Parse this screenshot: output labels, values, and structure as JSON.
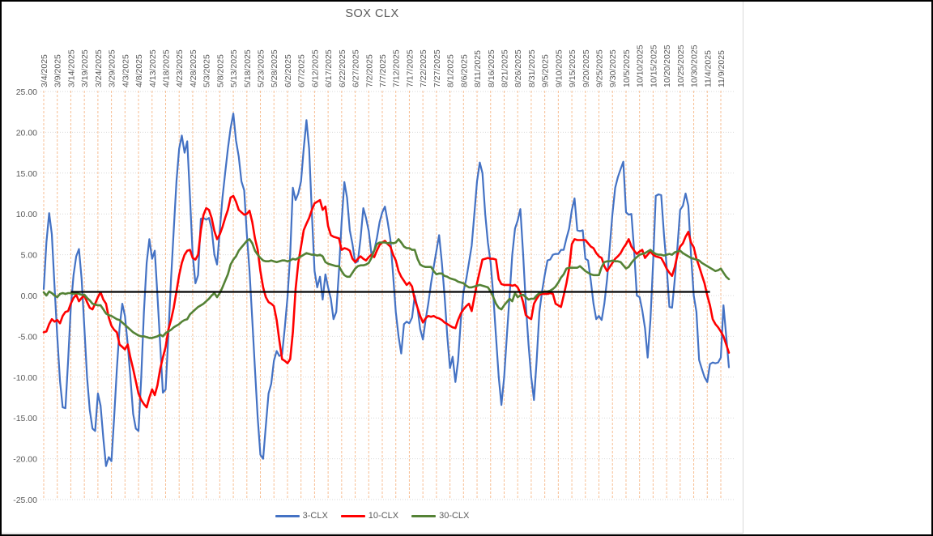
{
  "chart_data": {
    "type": "line",
    "title": "SOX CLX",
    "ylim": [
      -25,
      25
    ],
    "y_tick_step": 5,
    "y_tick_labels": [
      "25.00",
      "20.00",
      "15.00",
      "10.00",
      "5.00",
      "0.00",
      "-5.00",
      "-10.00",
      "-15.00",
      "-20.00",
      "-25.00"
    ],
    "grid": {
      "vertical_color": "#f7be93",
      "horizontal_color": "#d9d9d9",
      "vertical_on": true,
      "horizontal_on": true
    },
    "x_axis": {
      "unit": "date",
      "start_date": "3/4/2025",
      "days_between_points": 1,
      "days_between_ticks": 5,
      "tick_labels": [
        "3/4/2025",
        "3/9/2025",
        "3/14/2025",
        "3/19/2025",
        "3/24/2025",
        "3/29/2025",
        "4/3/2025",
        "4/8/2025",
        "4/13/2025",
        "4/18/2025",
        "4/23/2025",
        "4/28/2025",
        "5/3/2025",
        "5/8/2025",
        "5/13/2025",
        "5/18/2025",
        "5/23/2025",
        "5/28/2025",
        "6/2/2025",
        "6/7/2025",
        "6/12/2025",
        "6/17/2025",
        "6/22/2025",
        "6/27/2025",
        "7/2/2025",
        "7/7/2025",
        "7/12/2025",
        "7/17/2025",
        "7/22/2025",
        "7/27/2025",
        "8/1/2025",
        "8/6/2025",
        "8/11/2025",
        "8/16/2025",
        "8/21/2025",
        "8/26/2025",
        "8/31/2025",
        "9/5/2025",
        "9/10/2025",
        "9/15/2025",
        "9/20/2025",
        "9/25/2025",
        "9/30/2025",
        "10/5/2025",
        "10/10/2025",
        "10/15/2025",
        "10/20/2025",
        "10/25/2025",
        "10/30/2025",
        "11/4/2025",
        "11/9/2025"
      ]
    },
    "legend": {
      "position": "bottom",
      "entries": [
        "3-CLX",
        "10-CLX",
        "30-CLX"
      ]
    },
    "baseline": {
      "color": "#000000",
      "value": 0.45,
      "start_day_index": 10,
      "end_day_index": 246
    },
    "series": [
      {
        "name": "3-CLX",
        "color": "#4472C4",
        "width": 2.2,
        "values": [
          0.8,
          6.5,
          10.1,
          7.5,
          1.0,
          -5.0,
          -10.5,
          -13.7,
          -13.8,
          -8.0,
          -1.5,
          2.5,
          4.8,
          5.7,
          2.0,
          -4.0,
          -10.0,
          -14.0,
          -16.3,
          -16.6,
          -12.0,
          -13.5,
          -17.5,
          -20.9,
          -19.8,
          -20.3,
          -15.0,
          -9.0,
          -4.0,
          -1.0,
          -2.5,
          -6.0,
          -10.0,
          -14.5,
          -16.3,
          -16.6,
          -10.0,
          -2.0,
          4.0,
          6.9,
          4.5,
          5.5,
          0.0,
          -6.0,
          -11.9,
          -11.5,
          -5.0,
          2.0,
          8.0,
          14.0,
          18.0,
          19.6,
          17.5,
          18.9,
          12.0,
          5.0,
          1.5,
          2.5,
          9.4,
          9.5,
          9.3,
          9.5,
          8.2,
          5.0,
          3.8,
          8.0,
          12.0,
          15.0,
          18.0,
          20.5,
          22.3,
          19.0,
          17.0,
          14.0,
          12.9,
          7.5,
          3.0,
          -3.0,
          -9.0,
          -15.0,
          -19.5,
          -20.0,
          -16.0,
          -12.0,
          -10.8,
          -8.0,
          -6.8,
          -7.4,
          -7.2,
          -4.0,
          -0.2,
          5.0,
          13.2,
          11.7,
          12.5,
          14.0,
          18.0,
          21.5,
          18.0,
          10.0,
          3.0,
          1.0,
          2.3,
          -0.5,
          2.6,
          1.0,
          -0.4,
          -2.9,
          -2.0,
          3.0,
          9.0,
          13.9,
          12.0,
          8.0,
          6.3,
          4.0,
          4.2,
          7.0,
          10.7,
          9.5,
          7.9,
          5.1,
          5.5,
          7.0,
          9.0,
          10.2,
          10.9,
          9.0,
          6.9,
          2.5,
          -2.0,
          -5.0,
          -7.1,
          -3.5,
          -3.2,
          -3.4,
          -2.7,
          0.0,
          -1.5,
          -4.1,
          -5.4,
          -3.0,
          -1.0,
          1.5,
          3.5,
          5.5,
          7.4,
          4.0,
          0.0,
          -5.0,
          -8.9,
          -7.5,
          -10.6,
          -8.0,
          -3.0,
          0.5,
          2.0,
          4.0,
          6.1,
          10.0,
          14.0,
          16.3,
          15.0,
          10.0,
          6.5,
          4.0,
          0.0,
          -5.0,
          -10.0,
          -13.4,
          -10.0,
          -5.0,
          0.0,
          5.0,
          8.2,
          9.2,
          10.6,
          5.1,
          -1.0,
          -6.0,
          -10.0,
          -12.8,
          -8.0,
          -2.0,
          0.5,
          2.5,
          4.3,
          4.4,
          5.0,
          5.1,
          5.1,
          5.6,
          5.6,
          7.0,
          8.2,
          10.5,
          11.9,
          8.0,
          7.9,
          8.0,
          4.5,
          4.3,
          1.8,
          -1.0,
          -2.9,
          -2.5,
          -3.0,
          -1.0,
          2.0,
          6.0,
          10.0,
          13.2,
          14.5,
          15.5,
          16.4,
          10.2,
          9.9,
          10.0,
          5.5,
          0.0,
          -0.2,
          -1.8,
          -4.0,
          -7.6,
          -3.0,
          4.0,
          12.2,
          12.4,
          12.3,
          7.5,
          3.6,
          -1.4,
          -1.5,
          2.0,
          6.0,
          10.5,
          11.0,
          12.5,
          11.0,
          5.0,
          0.0,
          -2.0,
          -7.9,
          -9.0,
          -10.0,
          -10.6,
          -8.4,
          -8.2,
          -8.3,
          -8.2,
          -7.6,
          -1.2,
          -5.0,
          -8.8
        ]
      },
      {
        "name": "10-CLX",
        "color": "#FF0000",
        "width": 2.6,
        "values": [
          -4.5,
          -4.4,
          -3.5,
          -2.9,
          -3.2,
          -3.0,
          -3.4,
          -2.5,
          -2.0,
          -1.9,
          -1.0,
          -0.3,
          0.1,
          -0.7,
          -0.3,
          0.0,
          -0.8,
          -1.5,
          -1.7,
          -1.0,
          -0.2,
          0.4,
          -0.5,
          -1.0,
          -2.7,
          -3.7,
          -4.2,
          -4.5,
          -6.0,
          -6.3,
          -6.6,
          -6.0,
          -7.6,
          -9.0,
          -10.5,
          -12.0,
          -12.8,
          -13.3,
          -13.7,
          -12.5,
          -11.5,
          -12.2,
          -11.0,
          -9.0,
          -7.6,
          -6.3,
          -4.2,
          -3.0,
          -1.5,
          0.5,
          2.5,
          4.0,
          5.0,
          5.5,
          5.6,
          4.6,
          4.4,
          5.0,
          8.0,
          9.9,
          10.7,
          10.5,
          9.5,
          7.9,
          6.9,
          7.5,
          8.4,
          9.5,
          10.5,
          12.0,
          12.2,
          11.5,
          10.5,
          10.2,
          9.9,
          10.0,
          10.4,
          9.0,
          7.0,
          5.6,
          3.0,
          1.0,
          -0.2,
          -0.8,
          -1.0,
          -1.3,
          -3.0,
          -5.5,
          -7.8,
          -8.0,
          -8.3,
          -7.8,
          -4.5,
          0.8,
          4.0,
          6.0,
          8.0,
          8.8,
          9.5,
          10.5,
          11.3,
          11.5,
          11.7,
          10.5,
          10.9,
          8.5,
          7.4,
          7.2,
          7.1,
          7.0,
          5.6,
          5.8,
          5.7,
          5.5,
          4.5,
          4.1,
          4.5,
          4.8,
          4.5,
          4.3,
          4.7,
          5.0,
          4.7,
          5.5,
          6.2,
          6.5,
          6.7,
          6.3,
          6.0,
          5.0,
          4.3,
          3.0,
          2.3,
          1.8,
          1.3,
          1.6,
          1.1,
          -0.5,
          -1.5,
          -2.5,
          -3.3,
          -2.8,
          -2.5,
          -2.6,
          -2.5,
          -2.7,
          -2.8,
          -3.0,
          -3.3,
          -3.5,
          -3.7,
          -3.9,
          -4.0,
          -3.0,
          -2.2,
          -1.7,
          -1.3,
          -1.0,
          -1.9,
          -0.2,
          1.5,
          3.0,
          4.4,
          4.5,
          4.6,
          4.5,
          4.5,
          4.4,
          2.0,
          1.4,
          1.3,
          1.3,
          1.3,
          1.2,
          1.3,
          1.0,
          0.3,
          -0.8,
          -2.4,
          -2.7,
          -2.9,
          -1.0,
          -0.4,
          0.1,
          0.2,
          0.2,
          0.2,
          0.3,
          0.2,
          -1.0,
          -1.2,
          -1.4,
          0.0,
          1.5,
          3.3,
          6.3,
          6.9,
          6.8,
          6.8,
          6.8,
          6.8,
          6.4,
          6.0,
          5.8,
          5.2,
          4.8,
          4.6,
          3.6,
          3.0,
          3.5,
          4.0,
          4.5,
          4.8,
          5.2,
          5.8,
          6.3,
          6.9,
          6.0,
          5.5,
          5.1,
          5.4,
          5.6,
          4.6,
          5.0,
          5.4,
          5.0,
          4.8,
          4.7,
          4.6,
          4.0,
          3.3,
          2.8,
          2.4,
          3.5,
          5.0,
          6.0,
          6.4,
          7.2,
          7.8,
          6.5,
          5.9,
          4.5,
          3.6,
          2.5,
          1.5,
          0.0,
          -1.2,
          -2.9,
          -3.5,
          -3.9,
          -4.4,
          -5.0,
          -6.0,
          -7.0
        ]
      },
      {
        "name": "30-CLX",
        "color": "#548235",
        "width": 2.6,
        "values": [
          0.4,
          0.0,
          0.5,
          0.3,
          0.0,
          -0.2,
          0.2,
          0.3,
          0.2,
          0.3,
          0.3,
          0.2,
          0.3,
          0.2,
          0.1,
          0.1,
          -0.3,
          -0.6,
          -1.0,
          -1.1,
          -1.2,
          -1.2,
          -1.7,
          -2.2,
          -2.4,
          -2.5,
          -2.7,
          -2.9,
          -3.0,
          -3.3,
          -3.6,
          -3.9,
          -4.2,
          -4.5,
          -4.7,
          -4.9,
          -5.0,
          -5.0,
          -5.1,
          -5.2,
          -5.2,
          -5.1,
          -5.0,
          -4.8,
          -5.0,
          -4.6,
          -4.4,
          -4.2,
          -3.9,
          -3.7,
          -3.5,
          -3.2,
          -3.0,
          -2.9,
          -2.3,
          -2.0,
          -1.7,
          -1.4,
          -1.2,
          -1.0,
          -0.7,
          -0.4,
          0.0,
          0.3,
          -0.2,
          0.3,
          1.0,
          1.8,
          2.6,
          3.8,
          4.4,
          4.8,
          5.5,
          5.9,
          6.3,
          6.7,
          6.9,
          6.4,
          5.5,
          5.0,
          4.6,
          4.3,
          4.2,
          4.2,
          4.3,
          4.2,
          4.1,
          4.2,
          4.3,
          4.3,
          4.2,
          4.3,
          4.5,
          4.4,
          4.6,
          4.8,
          5.0,
          5.2,
          5.1,
          5.0,
          5.0,
          4.9,
          5.0,
          4.8,
          4.1,
          3.9,
          3.8,
          3.7,
          3.6,
          3.6,
          3.0,
          2.5,
          2.3,
          2.3,
          2.8,
          3.3,
          3.6,
          3.7,
          3.7,
          3.8,
          4.0,
          4.6,
          5.5,
          6.3,
          6.5,
          6.5,
          6.5,
          6.4,
          6.5,
          6.4,
          6.5,
          6.9,
          6.5,
          6.0,
          5.8,
          5.8,
          5.6,
          5.6,
          4.5,
          3.8,
          3.6,
          3.5,
          3.5,
          3.5,
          3.0,
          2.6,
          2.7,
          2.7,
          2.4,
          2.3,
          2.1,
          2.0,
          1.9,
          1.7,
          1.6,
          1.5,
          1.2,
          1.0,
          1.0,
          1.1,
          1.2,
          1.3,
          1.2,
          1.1,
          1.0,
          0.5,
          -0.2,
          -1.0,
          -1.5,
          -1.7,
          -1.2,
          -0.8,
          -0.4,
          -0.7,
          0.3,
          -0.2,
          0.0,
          0.1,
          -0.2,
          -0.5,
          -0.4,
          -0.4,
          0.0,
          0.3,
          0.4,
          0.5,
          0.5,
          0.6,
          0.8,
          1.1,
          1.6,
          2.2,
          2.6,
          3.3,
          3.4,
          3.4,
          3.4,
          3.4,
          3.6,
          3.3,
          3.0,
          2.8,
          2.6,
          2.5,
          2.5,
          2.5,
          3.5,
          4.1,
          4.2,
          4.2,
          4.3,
          4.2,
          4.2,
          4.1,
          3.7,
          3.3,
          3.5,
          4.0,
          4.4,
          4.7,
          5.0,
          5.1,
          5.2,
          5.4,
          5.6,
          5.3,
          5.1,
          5.0,
          5.0,
          4.9,
          5.0,
          5.1,
          5.0,
          5.3,
          5.4,
          5.5,
          5.2,
          5.0,
          4.8,
          4.6,
          4.5,
          4.4,
          4.3,
          4.0,
          3.8,
          3.6,
          3.4,
          3.2,
          3.0,
          3.1,
          3.3,
          2.8,
          2.3,
          2.0
        ]
      }
    ]
  }
}
